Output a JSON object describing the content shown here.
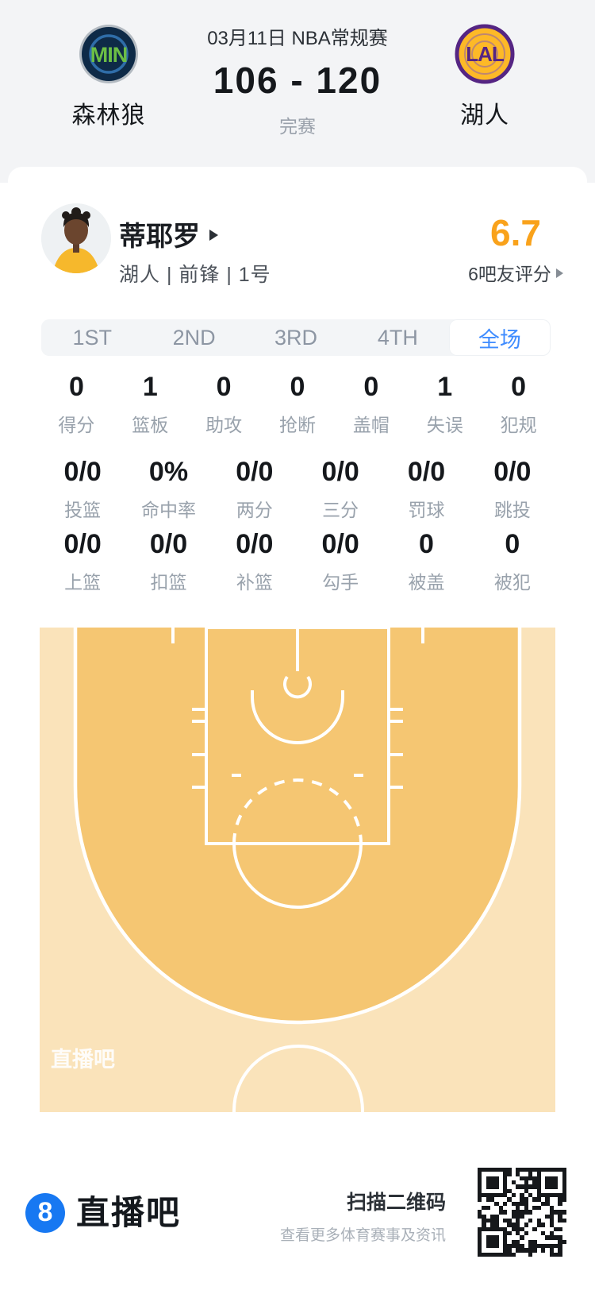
{
  "colors": {
    "accent_blue": "#3F8CFF",
    "rating_orange": "#F9A21B",
    "court_light": "#FAE3BA",
    "court_deep": "#F5C672",
    "brand_blue": "#1778F2",
    "header_bg": "#f3f4f6"
  },
  "header": {
    "date": "03月11日 NBA常规赛",
    "score": "106 - 120",
    "status": "完赛",
    "home": {
      "name": "森林狼",
      "logo": "MIN"
    },
    "away": {
      "name": "湖人",
      "logo": "LAL"
    }
  },
  "player": {
    "name": "蒂耶罗",
    "meta": "湖人 | 前锋 | 1号",
    "rating": "6.7",
    "rating_label": "6吧友评分"
  },
  "tabs": [
    {
      "label": "1ST",
      "selected": false
    },
    {
      "label": "2ND",
      "selected": false
    },
    {
      "label": "3RD",
      "selected": false
    },
    {
      "label": "4TH",
      "selected": false
    },
    {
      "label": "全场",
      "selected": true
    }
  ],
  "stats": {
    "row1": [
      {
        "value": "0",
        "label": "得分"
      },
      {
        "value": "1",
        "label": "篮板"
      },
      {
        "value": "0",
        "label": "助攻"
      },
      {
        "value": "0",
        "label": "抢断"
      },
      {
        "value": "0",
        "label": "盖帽"
      },
      {
        "value": "1",
        "label": "失误"
      },
      {
        "value": "0",
        "label": "犯规"
      }
    ],
    "row2": [
      {
        "value": "0/0",
        "label": "投篮"
      },
      {
        "value": "0%",
        "label": "命中率"
      },
      {
        "value": "0/0",
        "label": "两分"
      },
      {
        "value": "0/0",
        "label": "三分"
      },
      {
        "value": "0/0",
        "label": "罚球"
      },
      {
        "value": "0/0",
        "label": "跳投"
      }
    ],
    "row3": [
      {
        "value": "0/0",
        "label": "上篮"
      },
      {
        "value": "0/0",
        "label": "扣篮"
      },
      {
        "value": "0/0",
        "label": "补篮"
      },
      {
        "value": "0/0",
        "label": "勾手"
      },
      {
        "value": "0",
        "label": "被盖"
      },
      {
        "value": "0",
        "label": "被犯"
      }
    ]
  },
  "court": {
    "watermark": "直播吧"
  },
  "footer": {
    "brand": "直播吧",
    "logo_glyph": "8",
    "qr_title": "扫描二维码",
    "qr_subtitle": "查看更多体育赛事及资讯"
  }
}
